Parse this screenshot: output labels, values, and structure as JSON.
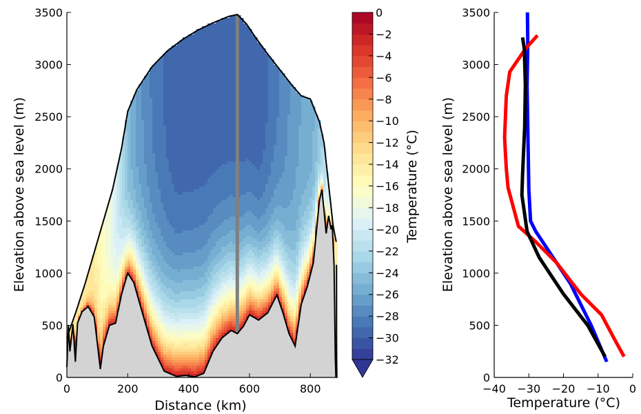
{
  "chart_data": [
    {
      "type": "contour",
      "xlabel": "Distance (km)",
      "ylabel": "Elevation above sea level (m)",
      "xlim": [
        0,
        890
      ],
      "ylim": [
        0,
        3500
      ],
      "xticks": [
        0,
        200,
        400,
        600,
        800
      ],
      "yticks": [
        0,
        500,
        1000,
        1500,
        2000,
        2500,
        3000,
        3500
      ],
      "surface_profile": [
        [
          0,
          380
        ],
        [
          30,
          630
        ],
        [
          60,
          900
        ],
        [
          90,
          1200
        ],
        [
          120,
          1500
        ],
        [
          150,
          1800
        ],
        [
          180,
          2200
        ],
        [
          200,
          2550
        ],
        [
          230,
          2760
        ],
        [
          280,
          2980
        ],
        [
          330,
          3130
        ],
        [
          380,
          3240
        ],
        [
          430,
          3330
        ],
        [
          480,
          3400
        ],
        [
          530,
          3460
        ],
        [
          560,
          3480
        ],
        [
          590,
          3390
        ],
        [
          620,
          3260
        ],
        [
          660,
          3100
        ],
        [
          700,
          2950
        ],
        [
          740,
          2800
        ],
        [
          770,
          2700
        ],
        [
          800,
          2670
        ],
        [
          830,
          2450
        ],
        [
          845,
          2250
        ],
        [
          860,
          1850
        ],
        [
          875,
          1450
        ],
        [
          885,
          1300
        ]
      ],
      "bed_profile": [
        [
          0,
          100
        ],
        [
          5,
          500
        ],
        [
          10,
          250
        ],
        [
          20,
          510
        ],
        [
          28,
          150
        ],
        [
          35,
          520
        ],
        [
          50,
          630
        ],
        [
          70,
          680
        ],
        [
          90,
          580
        ],
        [
          110,
          80
        ],
        [
          120,
          300
        ],
        [
          140,
          500
        ],
        [
          160,
          520
        ],
        [
          180,
          800
        ],
        [
          200,
          1000
        ],
        [
          220,
          910
        ],
        [
          250,
          600
        ],
        [
          280,
          300
        ],
        [
          320,
          60
        ],
        [
          360,
          10
        ],
        [
          390,
          20
        ],
        [
          420,
          5
        ],
        [
          450,
          40
        ],
        [
          480,
          250
        ],
        [
          510,
          380
        ],
        [
          540,
          450
        ],
        [
          560,
          420
        ],
        [
          580,
          490
        ],
        [
          600,
          600
        ],
        [
          630,
          550
        ],
        [
          660,
          620
        ],
        [
          690,
          790
        ],
        [
          710,
          620
        ],
        [
          730,
          420
        ],
        [
          750,
          300
        ],
        [
          770,
          700
        ],
        [
          790,
          870
        ],
        [
          810,
          1100
        ],
        [
          830,
          1700
        ],
        [
          838,
          1800
        ],
        [
          845,
          1600
        ],
        [
          852,
          1380
        ],
        [
          860,
          1550
        ],
        [
          868,
          1420
        ],
        [
          872,
          1460
        ],
        [
          878,
          1070
        ],
        [
          882,
          200
        ],
        [
          884,
          0
        ]
      ],
      "borehole_x": 560,
      "colorbar": {
        "label": "Temperature (°C)",
        "range": [
          -32,
          0
        ],
        "step": 1,
        "ticks": [
          0,
          -2,
          -4,
          -6,
          -8,
          -10,
          -12,
          -14,
          -16,
          -18,
          -20,
          -22,
          -24,
          -26,
          -28,
          -30,
          -32
        ],
        "extend": "min",
        "colormap": "RdYlBu_r"
      }
    },
    {
      "type": "line",
      "xlabel": "Temperature (°C)",
      "ylabel": "Elevation above sea level (m)",
      "xlim": [
        -40,
        0
      ],
      "ylim": [
        0,
        3500
      ],
      "xticks": [
        -40,
        -30,
        -20,
        -10,
        0
      ],
      "yticks": [
        0,
        500,
        1000,
        1500,
        2000,
        2500,
        3000,
        3500
      ],
      "series": [
        {
          "color": "#0000ff",
          "points": [
            [
              -7.5,
              150
            ],
            [
              -12,
              500
            ],
            [
              -18,
              900
            ],
            [
              -24,
              1200
            ],
            [
              -28,
              1400
            ],
            [
              -29.5,
              1500
            ],
            [
              -30,
              1800
            ],
            [
              -30.2,
              2200
            ],
            [
              -30.5,
              2800
            ],
            [
              -30.3,
              3200
            ],
            [
              -30.4,
              3500
            ]
          ]
        },
        {
          "color": "#ff0000",
          "points": [
            [
              -2.5,
              200
            ],
            [
              -5,
              350
            ],
            [
              -9,
              600
            ],
            [
              -15,
              800
            ],
            [
              -22,
              1100
            ],
            [
              -28,
              1300
            ],
            [
              -33,
              1450
            ],
            [
              -36,
              1820
            ],
            [
              -36.5,
              2000
            ],
            [
              -37,
              2300
            ],
            [
              -36.5,
              2700
            ],
            [
              -35.5,
              2930
            ],
            [
              -31,
              3150
            ],
            [
              -27.5,
              3280
            ]
          ]
        },
        {
          "color": "#000000",
          "points": [
            [
              -8,
              200
            ],
            [
              -13,
              500
            ],
            [
              -20,
              800
            ],
            [
              -27,
              1150
            ],
            [
              -30.5,
              1400
            ],
            [
              -32,
              1750
            ],
            [
              -31.8,
              1950
            ],
            [
              -31.2,
              2400
            ],
            [
              -31,
              2800
            ],
            [
              -31.3,
              3150
            ],
            [
              -31.8,
              3260
            ]
          ]
        }
      ]
    }
  ]
}
